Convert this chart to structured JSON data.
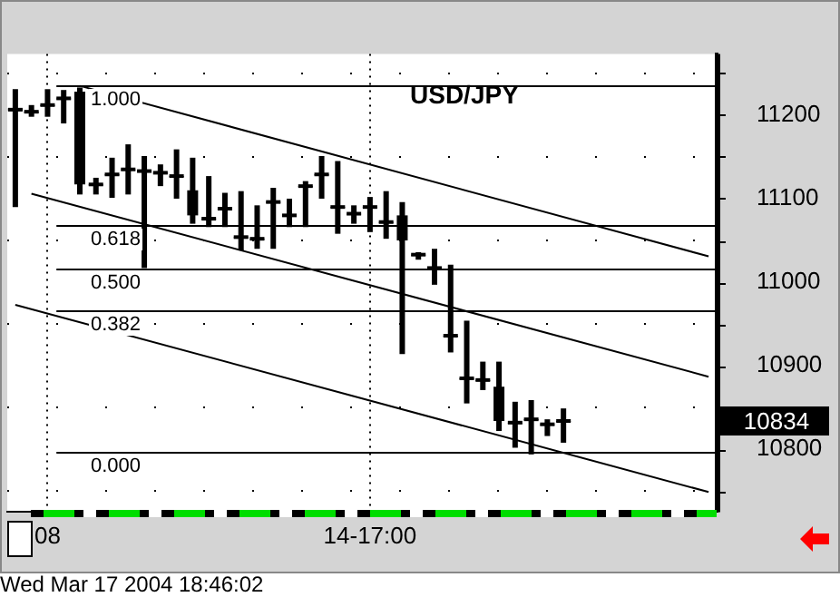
{
  "chart_data": {
    "type": "candlestick",
    "title": "USD/JPY",
    "categories": [
      null,
      null,
      "08",
      null,
      null,
      null,
      null,
      null,
      null,
      null,
      null,
      null,
      null,
      null,
      null,
      null,
      null,
      null,
      null,
      null,
      null,
      null,
      "14-17:00",
      null,
      null,
      null,
      null,
      null,
      null,
      null,
      null,
      null,
      null,
      null,
      null,
      null,
      null,
      null,
      null,
      null,
      null,
      null,
      null,
      null
    ],
    "ohlc": [
      [
        11205,
        11231,
        11090,
        11208
      ],
      [
        11204,
        11212,
        11198,
        11204
      ],
      [
        11212,
        11231,
        11198,
        11212
      ],
      [
        11220,
        11230,
        11190,
        11220
      ],
      [
        11228,
        11233,
        11105,
        11117
      ],
      [
        11117,
        11125,
        11105,
        11117
      ],
      [
        11129,
        11149,
        11101,
        11129
      ],
      [
        11135,
        11165,
        11105,
        11135
      ],
      [
        11133,
        11151,
        11017,
        11133
      ],
      [
        11131,
        11141,
        11115,
        11131
      ],
      [
        11127,
        11159,
        11100,
        11127
      ],
      [
        11110,
        11149,
        11070,
        11080
      ],
      [
        11076,
        11127,
        11066,
        11076
      ],
      [
        11088,
        11107,
        11066,
        11088
      ],
      [
        11054,
        11109,
        11038,
        11054
      ],
      [
        11052,
        11092,
        11040,
        11052
      ],
      [
        11096,
        11113,
        11040,
        11096
      ],
      [
        11080,
        11100,
        11066,
        11080
      ],
      [
        11115,
        11121,
        11066,
        11115
      ],
      [
        11129,
        11151,
        11100,
        11129
      ],
      [
        11090,
        11145,
        11058,
        11090
      ],
      [
        11082,
        11092,
        11070,
        11082
      ],
      [
        11090,
        11102,
        11060,
        11090
      ],
      [
        11072,
        11109,
        11052,
        11072
      ],
      [
        11080,
        11096,
        10914,
        11050
      ],
      [
        11033,
        11036,
        11027,
        11033
      ],
      [
        11017,
        11040,
        10997,
        11017
      ],
      [
        10936,
        11021,
        10916,
        10936
      ],
      [
        10885,
        10954,
        10855,
        10885
      ],
      [
        10883,
        10905,
        10871,
        10883
      ],
      [
        10875,
        10905,
        10822,
        10834
      ],
      [
        10832,
        10857,
        10802,
        10832
      ],
      [
        10836,
        10859,
        10794,
        10836
      ],
      [
        10830,
        10836,
        10816,
        10830
      ],
      [
        10834,
        10849,
        10808,
        10834
      ],
      null,
      null,
      null,
      null,
      null,
      null,
      null,
      null,
      null
    ],
    "series": [
      {
        "type": "line",
        "color": "#000000",
        "values": [
          null,
          null,
          null,
          null,
          11235,
          null,
          null,
          null,
          null,
          null,
          null,
          null,
          null,
          null,
          null,
          null,
          null,
          null,
          null,
          null,
          null,
          null,
          null,
          null,
          null,
          null,
          null,
          null,
          null,
          null,
          null,
          null,
          null,
          null,
          null,
          null,
          null,
          null,
          null,
          null,
          null,
          null,
          null,
          11031
        ]
      },
      {
        "type": "line",
        "color": "#000000",
        "values": [
          null,
          11106,
          null,
          null,
          null,
          null,
          null,
          null,
          null,
          null,
          null,
          null,
          null,
          null,
          null,
          null,
          null,
          null,
          null,
          null,
          null,
          null,
          null,
          null,
          null,
          null,
          null,
          null,
          null,
          null,
          null,
          null,
          null,
          null,
          null,
          null,
          null,
          null,
          null,
          null,
          null,
          null,
          null,
          10887
        ]
      },
      {
        "type": "line",
        "color": "#000000",
        "values": [
          10973,
          null,
          null,
          null,
          null,
          null,
          null,
          null,
          null,
          null,
          null,
          null,
          null,
          null,
          null,
          null,
          null,
          null,
          null,
          null,
          null,
          null,
          null,
          null,
          null,
          null,
          null,
          null,
          null,
          null,
          null,
          null,
          null,
          null,
          null,
          null,
          null,
          null,
          null,
          null,
          null,
          null,
          null,
          10749
        ]
      }
    ],
    "ylim": [
      10725,
      11273
    ],
    "yticks": [
      {
        "value": 10750,
        "label": null
      },
      10800,
      {
        "value": 10850,
        "label": null
      },
      10900,
      {
        "value": 10950,
        "label": null
      },
      11000,
      {
        "value": 11050,
        "label": null
      },
      11100,
      {
        "value": 11150,
        "label": null
      },
      11200,
      {
        "value": 11250,
        "label": null
      }
    ],
    "ref_lines": [
      {
        "axis": "y",
        "value": 11235,
        "color": "#000000"
      },
      {
        "axis": "y",
        "value": 11068,
        "color": "#000000"
      },
      {
        "axis": "y",
        "value": 11017,
        "color": "#000000"
      },
      {
        "axis": "y",
        "value": 10966,
        "color": "#000000"
      },
      {
        "axis": "y",
        "value": 10798,
        "color": "#000000"
      }
    ],
    "annotations": [
      "1.000",
      "0.618",
      "0.500",
      "0.382",
      "0.000",
      "10834",
      "Wed Mar 17 2004 18:46:02"
    ],
    "grid": true,
    "legend": false,
    "marker": "none",
    "line_style": "solid"
  }
}
